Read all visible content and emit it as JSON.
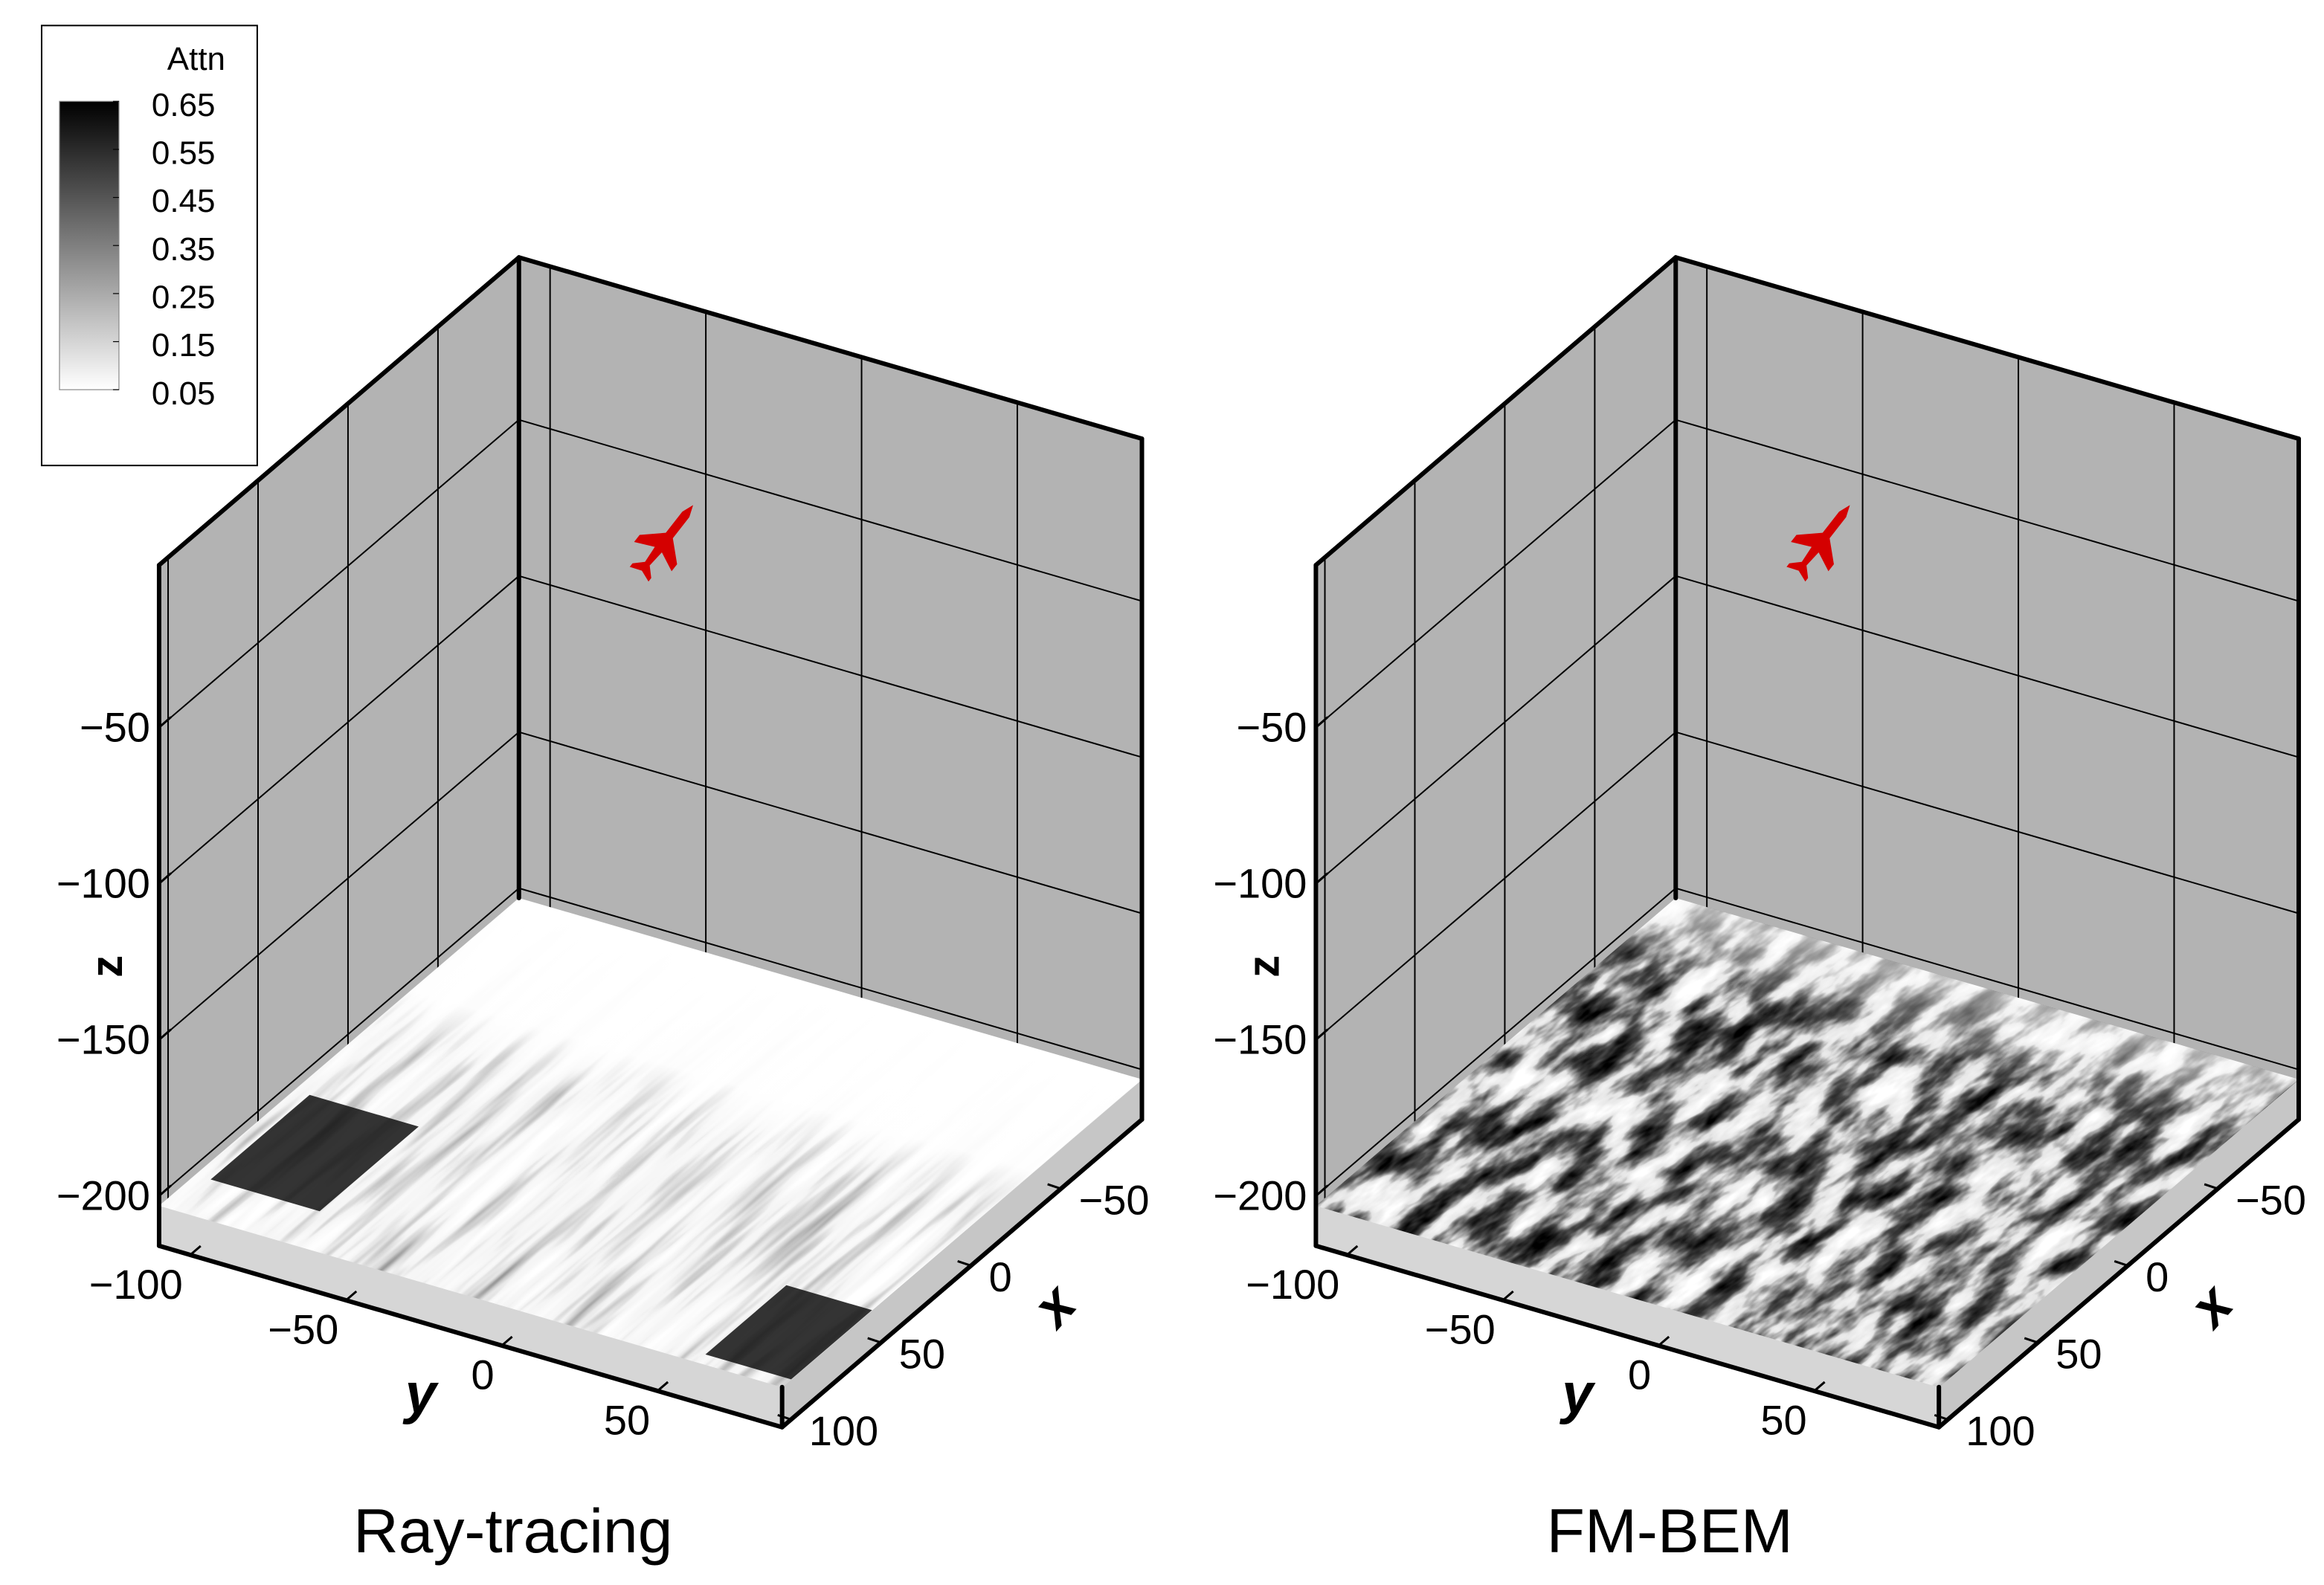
{
  "chart_data": [
    {
      "type": "surface3d",
      "title": "Ray-tracing",
      "xlabel": "x",
      "ylabel": "y",
      "zlabel": "z",
      "xlim": [
        -95,
        105
      ],
      "ylim": [
        -110,
        90
      ],
      "zlim": [
        -216,
        2
      ],
      "xticks": [
        {
          "value": -50,
          "label": "−50"
        },
        0,
        50,
        100
      ],
      "yticks": [
        {
          "value": -100,
          "label": "−100"
        },
        {
          "value": -50,
          "label": "−50"
        },
        0,
        50
      ],
      "zticks": [
        {
          "value": -50,
          "label": "−50"
        },
        {
          "value": -100,
          "label": "−100"
        },
        {
          "value": -150,
          "label": "−150"
        },
        {
          "value": -200,
          "label": "−200"
        }
      ],
      "grid": true,
      "wall_color": "#b3b3b3",
      "marker_color": "#d40000"
    },
    {
      "type": "surface3d",
      "title": "FM-BEM",
      "xlabel": "x",
      "ylabel": "y",
      "zlabel": "z",
      "xlim": [
        -95,
        105
      ],
      "ylim": [
        -110,
        90
      ],
      "zlim": [
        -216,
        2
      ],
      "xticks": [
        {
          "value": -50,
          "label": "−50"
        },
        0,
        50,
        100
      ],
      "yticks": [
        {
          "value": -100,
          "label": "−100"
        },
        {
          "value": -50,
          "label": "−50"
        },
        0,
        50
      ],
      "zticks": [
        {
          "value": -50,
          "label": "−50"
        },
        {
          "value": -100,
          "label": "−100"
        },
        {
          "value": -150,
          "label": "−150"
        },
        {
          "value": -200,
          "label": "−200"
        }
      ],
      "grid": true,
      "wall_color": "#b3b3b3",
      "marker_color": "#d40000"
    }
  ],
  "colorbar": {
    "title": "Attn",
    "clim": [
      0.05,
      0.65
    ],
    "ticks": [
      0.65,
      0.55,
      0.45,
      0.35,
      0.25,
      0.15,
      0.05
    ],
    "colors": [
      "#ffffff",
      "#000000"
    ]
  }
}
